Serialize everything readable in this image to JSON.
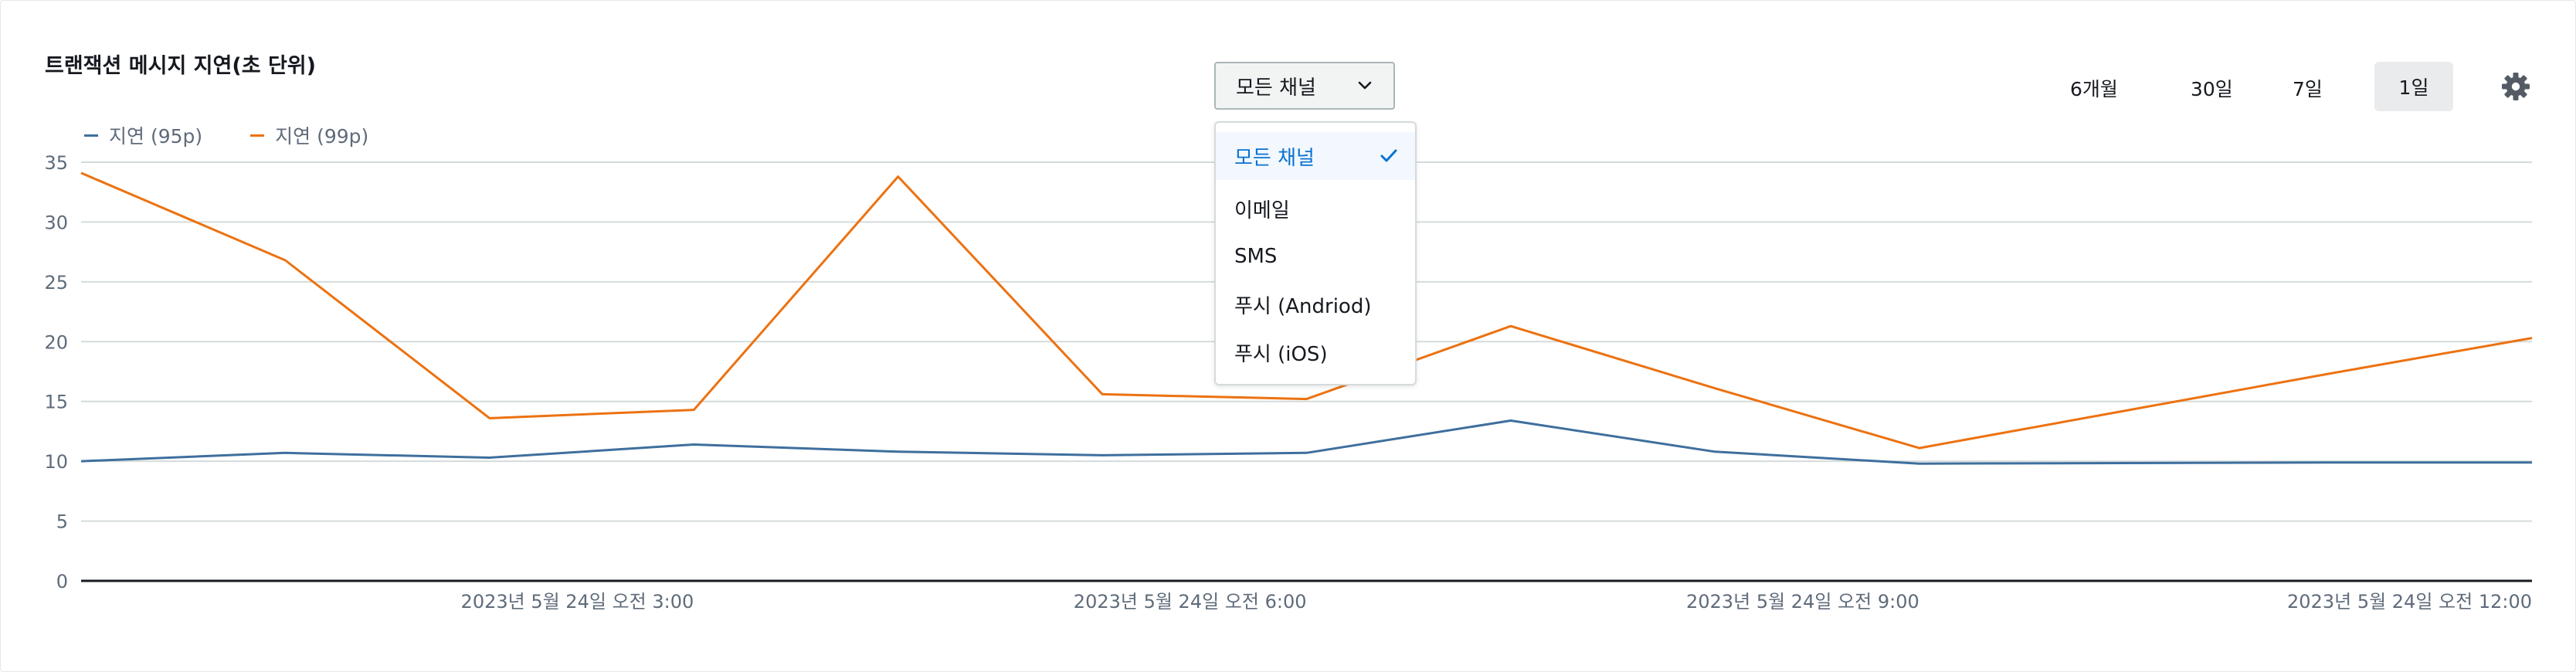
{
  "header": {
    "title": "트랜잭션 메시지 지연(초 단위)"
  },
  "channel_filter": {
    "selected": "모든 채널",
    "options": [
      "모든 채널",
      "이메일",
      "SMS",
      "푸시 (Andriod)",
      "푸시 (iOS)"
    ]
  },
  "time_ranges": [
    "6개월",
    "30일",
    "7일",
    "1일"
  ],
  "active_range": "1일",
  "colors": {
    "series_95": "#3e6f9e",
    "series_99": "#ec7211",
    "selected_option": "#0972d3"
  },
  "chart_data": {
    "type": "line",
    "ylim": [
      0,
      35
    ],
    "yticks": [
      "0",
      "5",
      "10",
      "15",
      "20",
      "25",
      "30",
      "35"
    ],
    "x_ticks": [
      {
        "x": 3,
        "label": "2023년 5월 24일 오전 3:00"
      },
      {
        "x": 6,
        "label": "2023년 5월 24일 오전 6:00"
      },
      {
        "x": 9,
        "label": "2023년 5월 24일 오전 9:00"
      },
      {
        "x": 12,
        "label": "2023년 5월 24일 오전 12:00"
      }
    ],
    "x": [
      0,
      1,
      2,
      3,
      4,
      5,
      6,
      7,
      8,
      9,
      10,
      11,
      12
    ],
    "series": [
      {
        "name": "지연 (95p)",
        "values": [
          10.0,
          10.7,
          10.3,
          11.4,
          10.8,
          10.5,
          10.7,
          13.4,
          10.8,
          9.8,
          9.85,
          9.9,
          9.9
        ]
      },
      {
        "name": "지연 (99p)",
        "values": [
          34.1,
          26.8,
          13.6,
          14.3,
          33.8,
          15.6,
          15.2,
          21.3,
          16.1,
          11.1,
          14.2,
          17.3,
          20.3
        ]
      }
    ],
    "grid": true,
    "legend": "top-left"
  }
}
